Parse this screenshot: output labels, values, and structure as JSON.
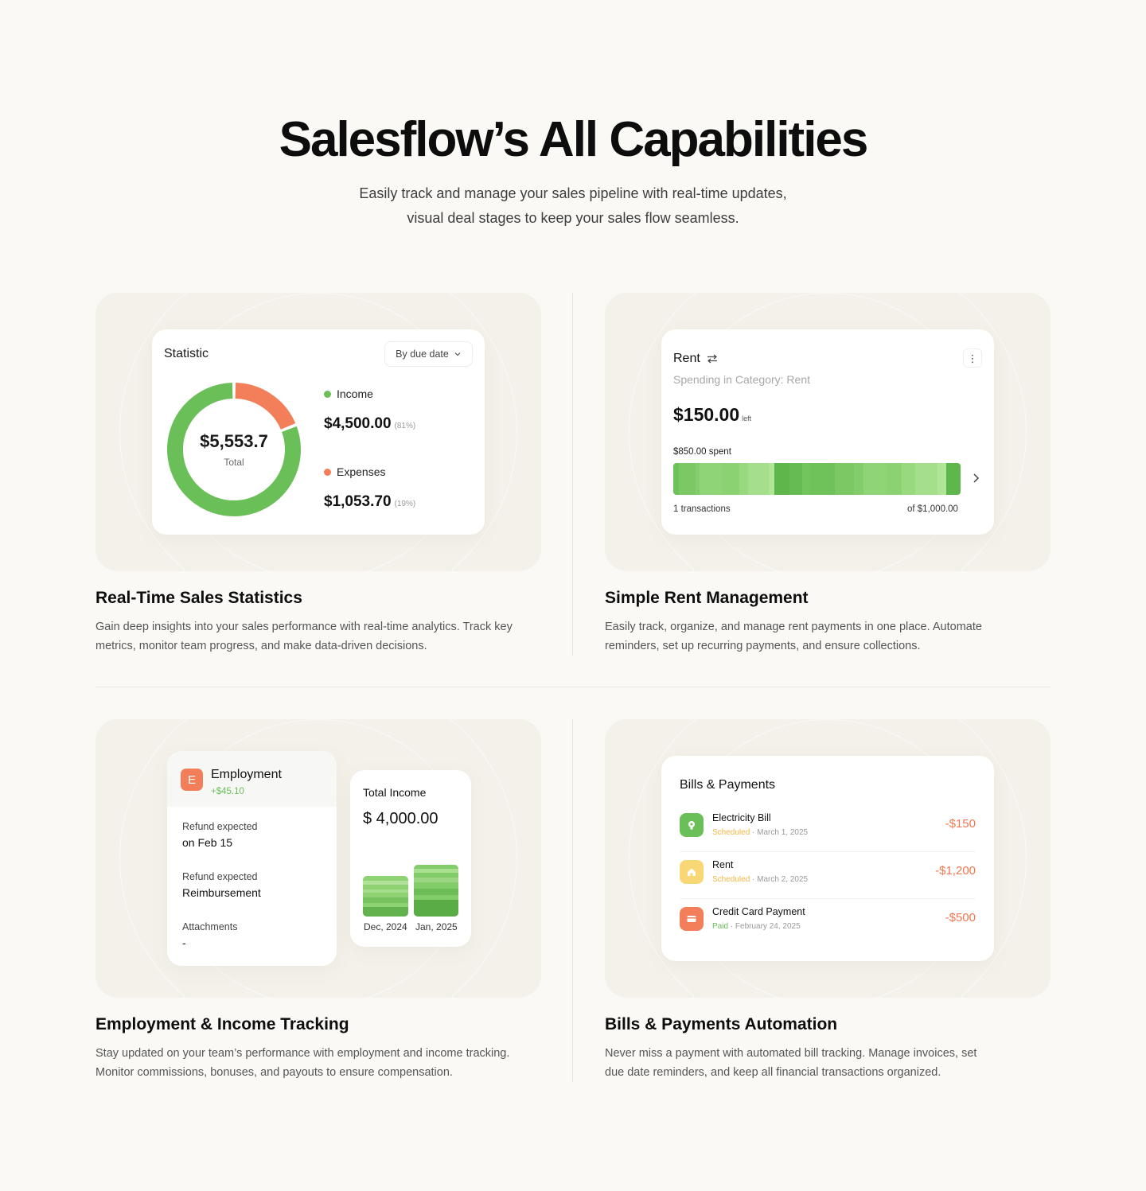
{
  "hero": {
    "title": "Salesflow’s All Capabilities",
    "subtitle_line1": "Easily track and manage your sales pipeline with real-time updates,",
    "subtitle_line2": "visual deal stages to keep your sales flow seamless."
  },
  "colors": {
    "background": "#faf9f5",
    "panel": "#f3f1e9",
    "income_green": "#6bbf59",
    "expense_orange": "#f37f5a",
    "warning_yellow": "#f5b642"
  },
  "features": [
    {
      "title": "Real-Time Sales Statistics",
      "desc_line1": "Gain deep insights into your sales performance with real-time analytics. Track key",
      "desc_line2": "metrics, monitor team progress, and make data-driven decisions."
    },
    {
      "title": "Simple Rent Management",
      "desc_line1": "Easily track, organize, and manage rent payments in one place. Automate",
      "desc_line2": "reminders, set up recurring payments, and ensure collections."
    },
    {
      "title": "Employment & Income Tracking",
      "desc_line1": "Stay updated on your team’s performance with employment and income tracking.",
      "desc_line2": "Monitor commissions, bonuses, and payouts to ensure compensation."
    },
    {
      "title": "Bills & Payments Automation",
      "desc_line1": "Never miss a payment with automated bill tracking. Manage invoices, set",
      "desc_line2": "due date reminders, and keep all financial transactions organized."
    }
  ],
  "statistic": {
    "title": "Statistic",
    "filter": "By due date",
    "filter_icon": "chevron-down-icon",
    "total": "$5,553.7",
    "total_label": "Total",
    "income_label": "Income",
    "income_amount": "$4,500.00",
    "income_pct": "(81%)",
    "expenses_label": "Expenses",
    "expenses_amount": "$1,053.70",
    "expenses_pct": "(19%)"
  },
  "chart_data": {
    "type": "pie",
    "categories": [
      "Income",
      "Expenses"
    ],
    "values": [
      4500.0,
      1053.7
    ],
    "colors": [
      "#6bbf59",
      "#f37f5a"
    ]
  },
  "rent": {
    "title": "Rent",
    "swap_icon": "swap-arrows-icon",
    "menu_icon": "kebab-menu-icon",
    "subtitle": "Spending in Category: Rent",
    "left_amount": "$150.00",
    "left_label": "left",
    "spent_label": "$850.00 spent",
    "spent_fraction": 0.85,
    "transactions": "1 transactions",
    "of_total": "of $1,000.00",
    "next_icon": "chevron-right-icon"
  },
  "employment": {
    "badge": "E",
    "title": "Employment",
    "delta": "+$45.10",
    "rows": [
      {
        "label": "Refund expected",
        "value": "on Feb 15"
      },
      {
        "label": "Refund expected",
        "value": "Reimbursement"
      },
      {
        "label": "Attachments",
        "value": "-"
      }
    ]
  },
  "total_income": {
    "title": "Total Income",
    "amount": "$ 4,000.00",
    "months": [
      "Dec, 2024",
      "Jan, 2025"
    ]
  },
  "bills": {
    "title": "Bills & Payments",
    "items": [
      {
        "name": "Electricity Bill",
        "status": "Scheduled",
        "date": "March 1, 2025",
        "amount": "-$150",
        "icon": "lightbulb-icon"
      },
      {
        "name": "Rent",
        "status": "Scheduled",
        "date": "March 2, 2025",
        "amount": "-$1,200",
        "icon": "house-icon"
      },
      {
        "name": "Credit Card Payment",
        "status": "Paid",
        "date": "February 24, 2025",
        "amount": "-$500",
        "icon": "credit-card-icon"
      }
    ]
  }
}
